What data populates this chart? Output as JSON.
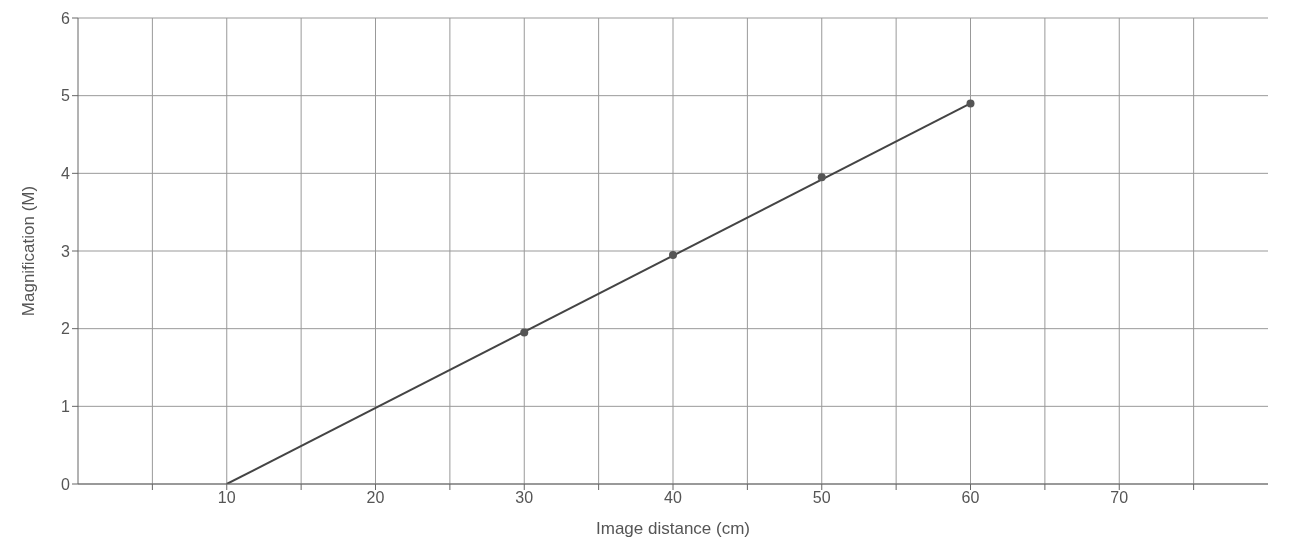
{
  "chart_data": {
    "type": "line",
    "xlabel": "Image distance (cm)",
    "ylabel": "Magnification (M)",
    "xlim": [
      0,
      80
    ],
    "xticks": [
      {
        "value": 5,
        "label": null
      },
      10,
      {
        "value": 15,
        "label": null
      },
      20,
      {
        "value": 25,
        "label": null
      },
      30,
      {
        "value": 35,
        "label": null
      },
      40,
      {
        "value": 45,
        "label": null
      },
      50,
      {
        "value": 55,
        "label": null
      },
      60,
      {
        "value": 65,
        "label": null
      },
      70,
      {
        "value": 75,
        "label": null
      }
    ],
    "ylim": [
      0,
      6
    ],
    "yticks": [
      0,
      1,
      2,
      3,
      4,
      5,
      6
    ],
    "grid": true,
    "series": [
      {
        "color": "#444444",
        "x": [
          10,
          60
        ],
        "values": [
          0,
          4.9
        ],
        "marker": "none"
      },
      {
        "type": "scatter",
        "color": "#555555",
        "x": [
          30,
          40,
          50,
          60
        ],
        "values": [
          1.95,
          2.95,
          3.95,
          4.9
        ],
        "marker": "circle"
      }
    ]
  }
}
